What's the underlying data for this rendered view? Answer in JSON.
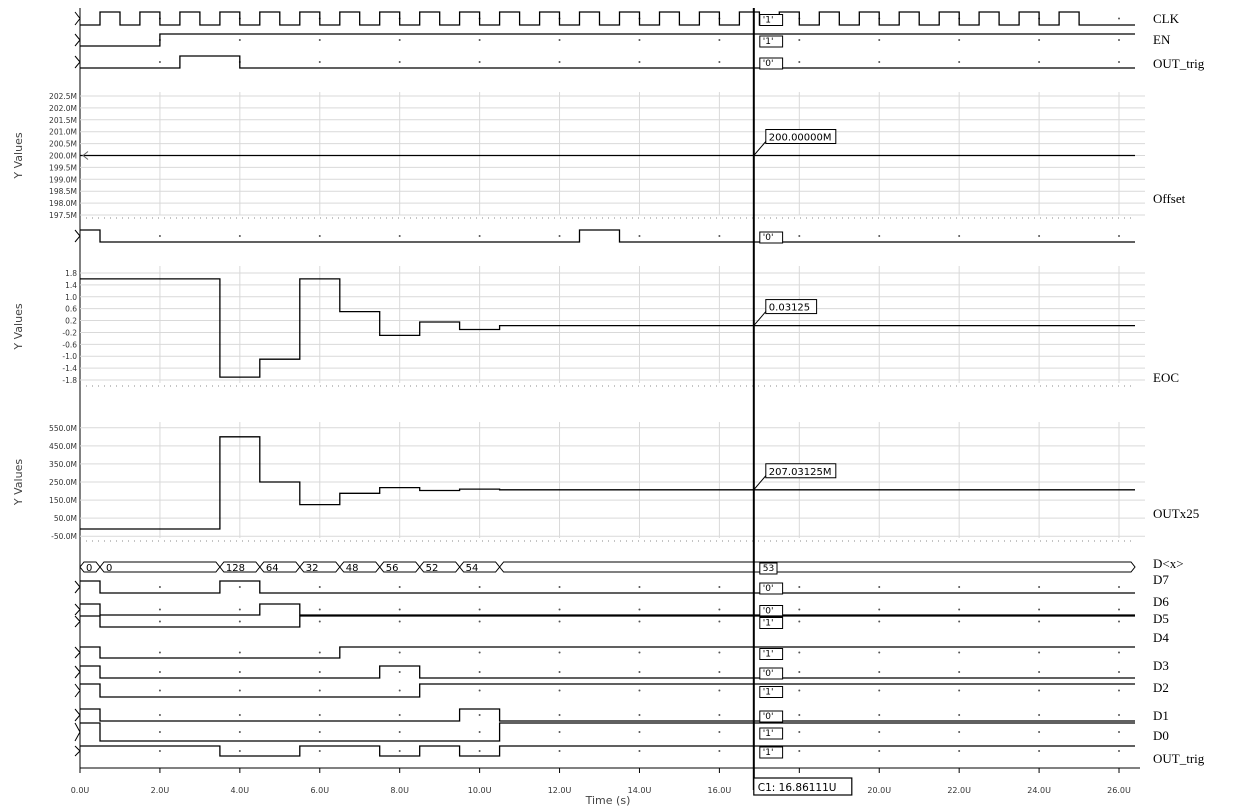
{
  "chart_data": {
    "type": "line",
    "x_axis": {
      "label": "Time (s)",
      "range": [
        0,
        26.4
      ],
      "ticks": [
        0,
        2,
        4,
        6,
        8,
        10,
        12,
        14,
        16,
        18,
        20,
        22,
        24,
        26
      ],
      "tick_labels": [
        "0.0U",
        "2.0U",
        "4.0U",
        "6.0U",
        "8.0U",
        "10.0U",
        "12.0U",
        "14.0U",
        "16.0U",
        "",
        "20.0U",
        "22.0U",
        "24.0U",
        "26.0U"
      ]
    },
    "cursor": {
      "label": "C1: 16.86111U",
      "x": 16.86111
    },
    "panels": [
      {
        "kind": "digital",
        "name": "CLK",
        "cursor_value": "'1'",
        "x": [
          0,
          0.5,
          1,
          1.5,
          2,
          2.5,
          3,
          3.5,
          4,
          4.5,
          5,
          5.5,
          6,
          6.5,
          7,
          7.5,
          8,
          8.5,
          9,
          9.5,
          10,
          10.5,
          11,
          11.5,
          12,
          12.5,
          13,
          13.5,
          14,
          14.5,
          15,
          15.5,
          16,
          16.5,
          17,
          17.5,
          18,
          18.5,
          19,
          19.5,
          20,
          20.5,
          21,
          21.5,
          22,
          22.5,
          23,
          23.5,
          24,
          24.5,
          25,
          25.5,
          26.4
        ],
        "y": [
          0,
          1,
          0,
          1,
          0,
          1,
          0,
          1,
          0,
          1,
          0,
          1,
          0,
          1,
          0,
          1,
          0,
          1,
          0,
          1,
          0,
          1,
          0,
          1,
          0,
          1,
          0,
          1,
          0,
          1,
          0,
          1,
          0,
          1,
          0,
          1,
          0,
          1,
          0,
          1,
          0,
          1,
          0,
          1,
          0,
          1,
          0,
          1,
          0,
          1,
          0,
          0,
          0
        ]
      },
      {
        "kind": "digital",
        "name": "EN",
        "cursor_value": "'1'",
        "x": [
          0,
          2,
          26.4
        ],
        "y": [
          0,
          1,
          1
        ]
      },
      {
        "kind": "digital",
        "name": "OUT_trig",
        "cursor_value": "'0'",
        "x": [
          0,
          2.5,
          4,
          26.4
        ],
        "y": [
          0,
          1,
          0,
          0
        ]
      },
      {
        "kind": "analog",
        "name": "Offset",
        "ylabel": "Y Values",
        "cursor_value": "200.00000M",
        "ylim": [
          197.5,
          202.5
        ],
        "ticks": [
          197.5,
          198.0,
          198.5,
          199.0,
          199.5,
          200.0,
          200.5,
          201.0,
          201.5,
          202.0,
          202.5
        ],
        "tick_labels": [
          "197.5M",
          "198.0M",
          "198.5M",
          "199.0M",
          "199.5M",
          "200.0M",
          "200.5M",
          "201.0M",
          "201.5M",
          "202.0M",
          "202.5M"
        ],
        "x": [
          0,
          26.4
        ],
        "y": [
          200,
          200
        ]
      },
      {
        "kind": "digital",
        "name": "",
        "cursor_value": "'0'",
        "x": [
          0,
          0.5,
          12.5,
          13.5,
          26.4
        ],
        "y": [
          1,
          0,
          1,
          0,
          0
        ]
      },
      {
        "kind": "analog",
        "name": "EOC",
        "ylabel": "Y Values",
        "cursor_value": "0.03125",
        "ylim": [
          -1.9,
          1.9
        ],
        "ticks": [
          -1.8,
          -1.4,
          -1.0,
          -0.6,
          -0.2,
          0.2,
          0.6,
          1.0,
          1.4,
          1.8
        ],
        "tick_labels": [
          "-1.8",
          "-1.4",
          "-1.0",
          "-0.6",
          "-0.2",
          "0.2",
          "0.6",
          "1.0",
          "1.4",
          "1.8"
        ],
        "x": [
          0,
          3.5,
          4.5,
          5.5,
          6.5,
          7.5,
          8.5,
          9.5,
          10.5,
          26.4
        ],
        "y": [
          1.6,
          -1.7,
          -1.1,
          1.6,
          0.5,
          -0.3,
          0.15,
          -0.1,
          0.03125,
          0.03125
        ]
      },
      {
        "kind": "analog",
        "name": "OUTx25",
        "ylabel": "Y Values",
        "cursor_value": "207.03125M",
        "ylim": [
          -60,
          560
        ],
        "ticks": [
          -50,
          50,
          150,
          250,
          350,
          450,
          550
        ],
        "tick_labels": [
          "-50.0M",
          "50.0M",
          "150.0M",
          "250.0M",
          "350.0M",
          "450.0M",
          "550.0M"
        ],
        "x": [
          0,
          3.5,
          4.5,
          5.5,
          6.5,
          7.5,
          8.5,
          9.5,
          10.5,
          26.4
        ],
        "y": [
          -10,
          500,
          250,
          125,
          187.5,
          218.75,
          203.125,
          210.9375,
          207.03125,
          207.03125
        ]
      },
      {
        "kind": "bus",
        "name": "D<x>",
        "cursor_value": "53",
        "segments": [
          {
            "x0": 0,
            "x1": 0.5,
            "label": "0"
          },
          {
            "x0": 0.5,
            "x1": 3.5,
            "label": "0"
          },
          {
            "x0": 3.5,
            "x1": 4.5,
            "label": "128"
          },
          {
            "x0": 4.5,
            "x1": 5.5,
            "label": "64"
          },
          {
            "x0": 5.5,
            "x1": 6.5,
            "label": "32"
          },
          {
            "x0": 6.5,
            "x1": 7.5,
            "label": "48"
          },
          {
            "x0": 7.5,
            "x1": 8.5,
            "label": "56"
          },
          {
            "x0": 8.5,
            "x1": 9.5,
            "label": "52"
          },
          {
            "x0": 9.5,
            "x1": 10.5,
            "label": "54"
          },
          {
            "x0": 10.5,
            "x1": 26.4,
            "label": "53"
          }
        ]
      },
      {
        "kind": "digital",
        "name": "D7",
        "cursor_value": "'0'",
        "x": [
          0,
          0.5,
          3.5,
          4.5,
          26.4
        ],
        "y": [
          1,
          0,
          1,
          0,
          0
        ]
      },
      {
        "kind": "digital",
        "name": "D6",
        "cursor_value": "'0'",
        "x": [
          0,
          0.5,
          4.5,
          5.5,
          26.4
        ],
        "y": [
          1,
          0,
          1,
          0,
          0
        ]
      },
      {
        "kind": "digital",
        "name": "D5",
        "cursor_value": "'1'",
        "x": [
          0,
          0.5,
          5.5,
          26.4
        ],
        "y": [
          1,
          0,
          1,
          1
        ]
      },
      {
        "kind": "digital",
        "name": "D4",
        "cursor_value": "'1'",
        "x": [
          0,
          0.5,
          6.5,
          26.4
        ],
        "y": [
          1,
          0,
          1,
          1
        ]
      },
      {
        "kind": "digital",
        "name": "D3",
        "cursor_value": "'0'",
        "x": [
          0,
          0.5,
          7.5,
          8.5,
          26.4
        ],
        "y": [
          1,
          0,
          1,
          0,
          0
        ]
      },
      {
        "kind": "digital",
        "name": "D2",
        "cursor_value": "'1'",
        "x": [
          0,
          0.5,
          8.5,
          26.4
        ],
        "y": [
          1,
          0,
          1,
          1
        ]
      },
      {
        "kind": "digital",
        "name": "D1",
        "cursor_value": "'0'",
        "x": [
          0,
          0.5,
          9.5,
          10.5,
          26.4
        ],
        "y": [
          1,
          0,
          1,
          0,
          0
        ]
      },
      {
        "kind": "digital",
        "name": "D0",
        "cursor_value": "'1'",
        "x": [
          0,
          0.5,
          10.5,
          26.4
        ],
        "y": [
          1,
          0,
          1,
          1
        ]
      },
      {
        "kind": "digital",
        "name": "OUT_trig",
        "cursor_value": "'1'",
        "x": [
          0,
          3.5,
          5.5,
          7.5,
          8.5,
          9.5,
          10.5,
          26.4
        ],
        "y": [
          1,
          0,
          1,
          0,
          1,
          0,
          1,
          1
        ]
      }
    ]
  }
}
